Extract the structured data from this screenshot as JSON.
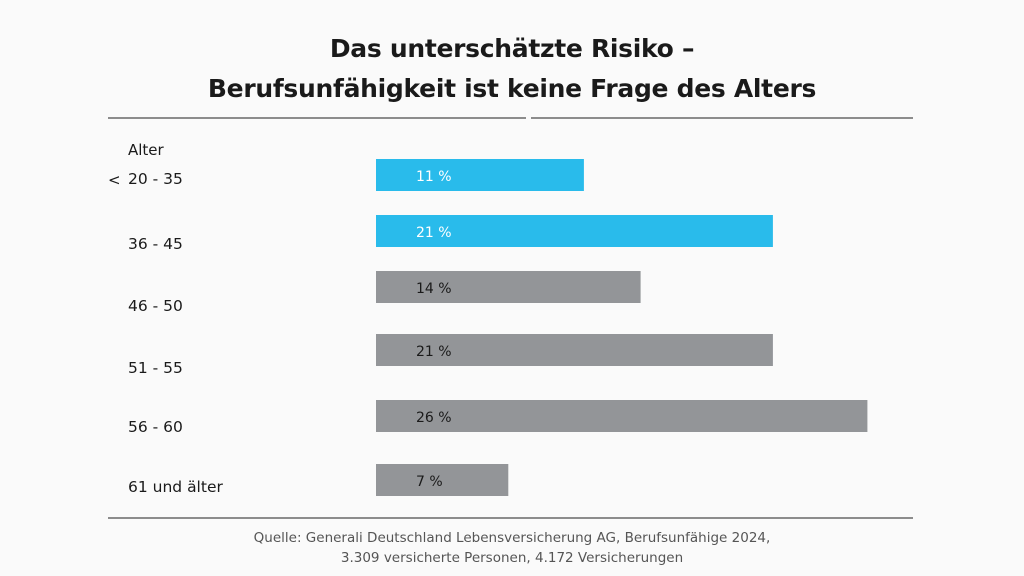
{
  "chart_data": {
    "type": "bar",
    "orientation": "horizontal",
    "title_line1": "Das unterschätzte Risiko –",
    "title_line2": "Berufsunfähigkeit ist keine Frage des Alters",
    "ylabel": "Alter",
    "xlabel": "",
    "categories": [
      "20 - 35",
      "36 - 45",
      "46 - 50",
      "51 - 55",
      "56 - 60",
      "61 und älter"
    ],
    "category_prefix": "<",
    "values": [
      11,
      21,
      14,
      21,
      26,
      7
    ],
    "data_labels": [
      "11 %",
      "21 %",
      "14 %",
      "21 %",
      "26 %",
      "7 %"
    ],
    "unit": "%",
    "xlim": [
      0,
      27
    ],
    "grid": false,
    "legend": "none",
    "highlight_color": "#29bbeb",
    "default_color": "#939598",
    "highlight_indices": [
      0,
      1
    ],
    "source_line1": "Quelle: Generali Deutschland Lebensversicherung AG, Berufsunfähige 2024,",
    "source_line2": "3.309 versicherte Personen, 4.172 Versicherungen"
  }
}
